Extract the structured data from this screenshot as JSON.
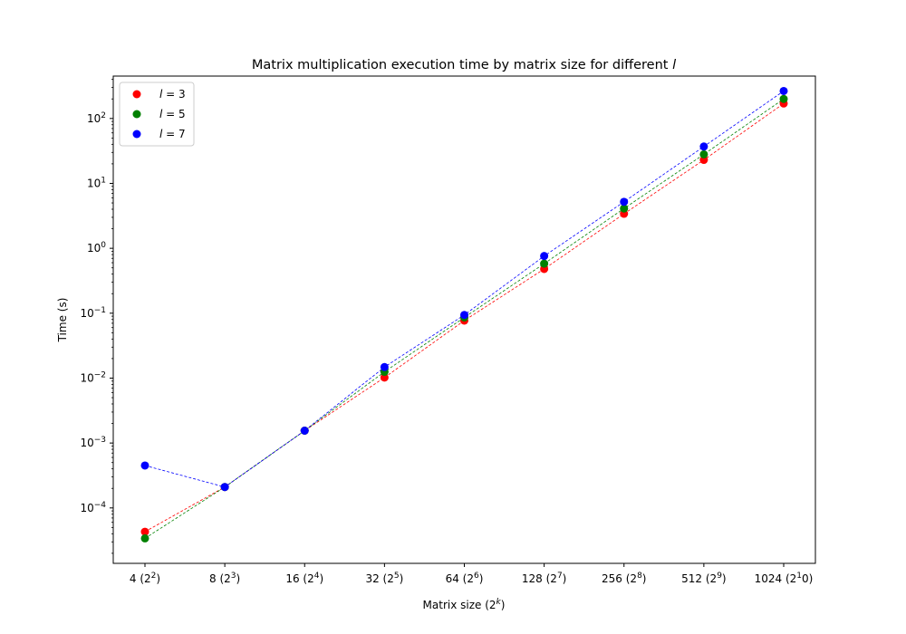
{
  "chart_data": {
    "type": "scatter",
    "title": "Matrix multiplication execution time by matrix size for different",
    "title_italic": "l",
    "xlabel": "Matrix size (2",
    "xlabel_sup": "k",
    "xlabel_end": ")",
    "ylabel": "Time (s)",
    "y_scale": "log",
    "ylim": [
      1.4e-05,
      450
    ],
    "categories": [
      {
        "label": "4 (2",
        "sup": "2",
        "end": ")"
      },
      {
        "label": "8 (2",
        "sup": "3",
        "end": ")"
      },
      {
        "label": "16 (2",
        "sup": "4",
        "end": ")"
      },
      {
        "label": "32 (2",
        "sup": "5",
        "end": ")"
      },
      {
        "label": "64 (2",
        "sup": "6",
        "end": ")"
      },
      {
        "label": "128 (2",
        "sup": "7",
        "end": ")"
      },
      {
        "label": "256 (2",
        "sup": "8",
        "end": ")"
      },
      {
        "label": "512 (2",
        "sup": "9",
        "end": ")"
      },
      {
        "label": "1024 (2",
        "sup": "1",
        "end": "0)"
      }
    ],
    "y_ticks": [
      {
        "value": 0.0001,
        "base": "10",
        "exp": "−4"
      },
      {
        "value": 0.001,
        "base": "10",
        "exp": "−3"
      },
      {
        "value": 0.01,
        "base": "10",
        "exp": "−2"
      },
      {
        "value": 0.1,
        "base": "10",
        "exp": "−1"
      },
      {
        "value": 1,
        "base": "10",
        "exp": "0"
      },
      {
        "value": 10,
        "base": "10",
        "exp": "1"
      },
      {
        "value": 100,
        "base": "10",
        "exp": "2"
      }
    ],
    "legend_position": "upper-left",
    "series": [
      {
        "name": "l = 3",
        "name_var": "l",
        "name_rest": " = 3",
        "color": "#ff0000",
        "values": [
          4.3e-05,
          0.00021,
          0.00155,
          0.0102,
          0.077,
          0.48,
          3.4,
          23,
          170
        ]
      },
      {
        "name": "l = 5",
        "name_var": "l",
        "name_rest": " = 5",
        "color": "#008000",
        "values": [
          3.4e-05,
          0.00021,
          0.00155,
          0.0125,
          0.086,
          0.58,
          4.1,
          28,
          200
        ]
      },
      {
        "name": "l = 7",
        "name_var": "l",
        "name_rest": " = 7",
        "color": "#0000ff",
        "values": [
          0.00045,
          0.00021,
          0.00155,
          0.0148,
          0.094,
          0.76,
          5.2,
          37,
          265
        ]
      }
    ]
  }
}
